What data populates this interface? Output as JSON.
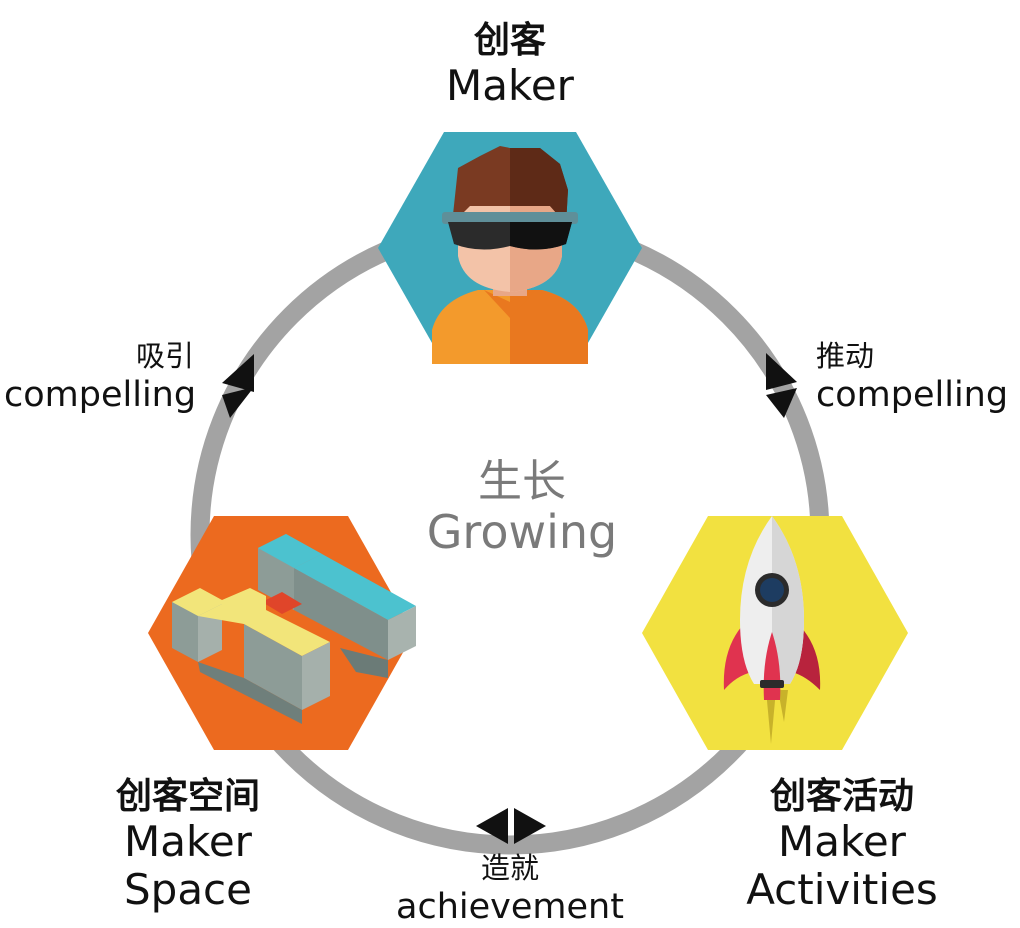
{
  "nodes": {
    "maker": {
      "label_cn": "创客",
      "label_en": "Maker",
      "color": "#3ea8bb"
    },
    "space": {
      "label_cn": "创客空间",
      "label_en_1": "Maker",
      "label_en_2": "Space",
      "color": "#ec6a1f"
    },
    "activities": {
      "label_cn": "创客活动",
      "label_en_1": "Maker",
      "label_en_2": "Activities",
      "color": "#f2e140"
    }
  },
  "edges": {
    "left": {
      "label_cn": "吸引",
      "label_en": "compelling"
    },
    "right": {
      "label_cn": "推动",
      "label_en": "compelling"
    },
    "bottom": {
      "label_cn": "造就",
      "label_en": "achievement"
    }
  },
  "center": {
    "label_cn": "生长",
    "label_en": "Growing"
  },
  "colors": {
    "ring": "#a3a3a3",
    "arrow": "#111111",
    "center_text": "#7a7a7a"
  }
}
